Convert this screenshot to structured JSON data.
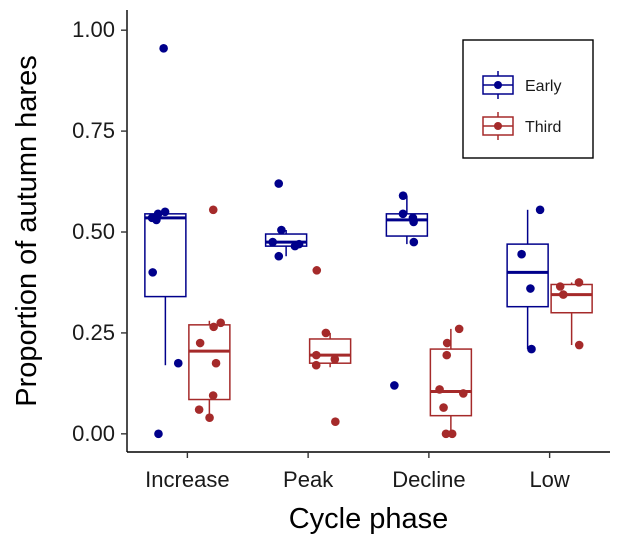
{
  "chart_data": {
    "type": "boxplot",
    "xlabel": "Cycle phase",
    "ylabel": "Proportion of autumn hares",
    "ylim": [
      -0.045,
      1.05
    ],
    "yticks": [
      0.0,
      0.25,
      0.5,
      0.75,
      1.0
    ],
    "ytick_labels": [
      "0.00",
      "0.25",
      "0.50",
      "0.75",
      "1.00"
    ],
    "categories": [
      "Increase",
      "Peak",
      "Decline",
      "Low"
    ],
    "grid": false,
    "legend": {
      "position": "top-right"
    },
    "series": [
      {
        "name": "Early",
        "color": "#00008b",
        "boxes": [
          {
            "q1": 0.34,
            "median": 0.535,
            "q3": 0.545,
            "whisker_low": 0.17,
            "whisker_high": 0.555
          },
          {
            "q1": 0.465,
            "median": 0.475,
            "q3": 0.495,
            "whisker_low": 0.44,
            "whisker_high": 0.505
          },
          {
            "q1": 0.49,
            "median": 0.53,
            "q3": 0.545,
            "whisker_low": 0.47,
            "whisker_high": 0.59
          },
          {
            "q1": 0.315,
            "median": 0.4,
            "q3": 0.47,
            "whisker_low": 0.21,
            "whisker_high": 0.555
          }
        ],
        "points": [
          [
            0.955,
            0.55,
            0.545,
            0.535,
            0.53,
            0.4,
            0.175,
            0.0
          ],
          [
            0.62,
            0.505,
            0.475,
            0.47,
            0.465,
            0.44
          ],
          [
            0.59,
            0.545,
            0.535,
            0.525,
            0.475,
            0.12
          ],
          [
            0.555,
            0.445,
            0.36,
            0.21
          ]
        ]
      },
      {
        "name": "Third",
        "color": "#a52a2a",
        "boxes": [
          {
            "q1": 0.085,
            "median": 0.205,
            "q3": 0.27,
            "whisker_low": 0.04,
            "whisker_high": 0.28
          },
          {
            "q1": 0.175,
            "median": 0.195,
            "q3": 0.235,
            "whisker_low": 0.165,
            "whisker_high": 0.25
          },
          {
            "q1": 0.045,
            "median": 0.105,
            "q3": 0.21,
            "whisker_low": 0.0,
            "whisker_high": 0.26
          },
          {
            "q1": 0.3,
            "median": 0.345,
            "q3": 0.37,
            "whisker_low": 0.22,
            "whisker_high": 0.375
          }
        ],
        "points": [
          [
            0.555,
            0.275,
            0.265,
            0.225,
            0.175,
            0.095,
            0.06,
            0.04
          ],
          [
            0.405,
            0.25,
            0.195,
            0.185,
            0.17,
            0.03
          ],
          [
            0.26,
            0.225,
            0.195,
            0.11,
            0.1,
            0.065,
            0.0,
            0.0
          ],
          [
            0.375,
            0.365,
            0.345,
            0.22
          ]
        ]
      }
    ]
  }
}
